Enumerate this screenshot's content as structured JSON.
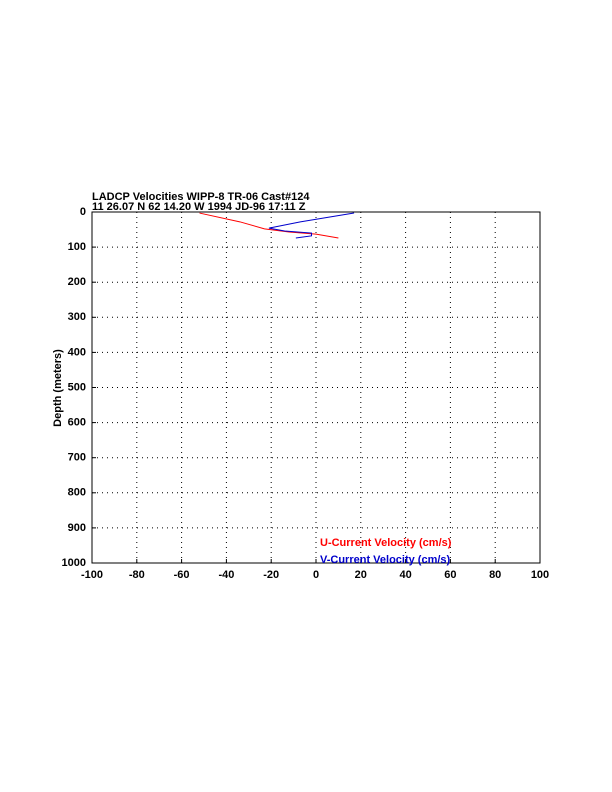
{
  "chart_data": {
    "type": "line",
    "title": "LADCP Velocities WIPP-8 TR-06 Cast#124",
    "subtitle": "11 26.07 N  62 14.20 W  1994 JD-96 17:11 Z",
    "y_label": "Depth (meters)",
    "xlim": [
      -100,
      100
    ],
    "xticks": [
      -100,
      -80,
      -60,
      -40,
      -20,
      0,
      20,
      40,
      60,
      80,
      100
    ],
    "ylim": [
      0,
      1000
    ],
    "yticks": [
      0,
      100,
      200,
      300,
      400,
      500,
      600,
      700,
      800,
      900,
      1000
    ],
    "y_inverted": true,
    "grid": true,
    "series": [
      {
        "name": "U-Current Velocity (cm/s)",
        "color": "#ff0000",
        "x": [
          -52,
          -34,
          -23,
          -12,
          0,
          10
        ],
        "y": [
          3,
          28,
          48,
          57,
          63,
          74
        ]
      },
      {
        "name": "V-Current Velocity (cm/s)",
        "color": "#0000cc",
        "x": [
          17,
          -7,
          -21,
          -14,
          -2,
          -2,
          -9
        ],
        "y": [
          3,
          28,
          46,
          54,
          60,
          68,
          74
        ]
      }
    ]
  }
}
